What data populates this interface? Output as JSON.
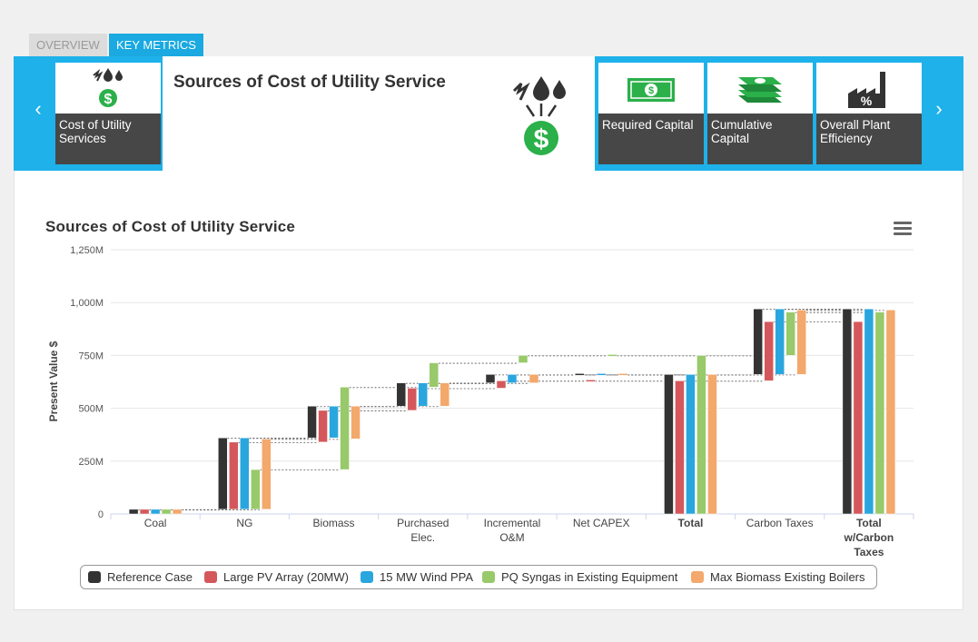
{
  "tabs": {
    "overview": "OVERVIEW",
    "metrics": "KEY METRICS"
  },
  "carousel": {
    "prev": "‹",
    "next": "›",
    "selected_title": "Sources of Cost of Utility Service",
    "cards": [
      {
        "label": "Cost of Utility Services",
        "icon": "energy-cost-icon"
      },
      {
        "label": "Required Capital",
        "icon": "dollar-bill-icon"
      },
      {
        "label": "Cumulative Capital",
        "icon": "money-stack-icon"
      },
      {
        "label": "Overall Plant Efficiency",
        "icon": "factory-percent-icon"
      }
    ]
  },
  "colors": {
    "series": [
      "#333333",
      "#d4585b",
      "#2aa6df",
      "#98c96a",
      "#f3a86c"
    ],
    "accent": "#1eb1ea",
    "icon_green": "#2bb04a"
  },
  "chart_data": {
    "type": "bar",
    "subtype": "waterfall",
    "title": "Sources of Cost of Utility Service",
    "ylabel": "Present Value $",
    "xlabel": "",
    "ylim": [
      0,
      1250
    ],
    "yticks": [
      "0",
      "250M",
      "500M",
      "750M",
      "1,000M",
      "1,250M"
    ],
    "categories": [
      "Coal",
      "NG",
      "Biomass",
      "Purchased\nElec.",
      "Incremental\nO&M",
      "Net CAPEX",
      "Total",
      "Carbon Taxes",
      "Total\nw/Carbon\nTaxes"
    ],
    "total_categories": [
      "Total",
      "Total\nw/Carbon\nTaxes"
    ],
    "units": "million $",
    "series": [
      {
        "name": "Reference Case",
        "ranges": [
          [
            0,
            22
          ],
          [
            22,
            360
          ],
          [
            360,
            510
          ],
          [
            510,
            620
          ],
          [
            620,
            660
          ],
          [
            660,
            660
          ],
          [
            0,
            660
          ],
          [
            660,
            970
          ],
          [
            0,
            970
          ]
        ]
      },
      {
        "name": "Large PV Array (20MW)",
        "ranges": [
          [
            0,
            22
          ],
          [
            22,
            340
          ],
          [
            340,
            490
          ],
          [
            490,
            595
          ],
          [
            595,
            630
          ],
          [
            630,
            630
          ],
          [
            0,
            630
          ],
          [
            630,
            910
          ],
          [
            0,
            910
          ]
        ]
      },
      {
        "name": "15 MW Wind PPA",
        "ranges": [
          [
            0,
            22
          ],
          [
            22,
            360
          ],
          [
            360,
            510
          ],
          [
            510,
            620
          ],
          [
            620,
            660
          ],
          [
            660,
            660
          ],
          [
            0,
            660
          ],
          [
            660,
            970
          ],
          [
            0,
            970
          ]
        ]
      },
      {
        "name": "PQ Syngas in Existing Equipment",
        "ranges": [
          [
            0,
            22
          ],
          [
            22,
            210
          ],
          [
            210,
            600
          ],
          [
            600,
            715
          ],
          [
            715,
            750
          ],
          [
            750,
            750
          ],
          [
            0,
            750
          ],
          [
            750,
            955
          ],
          [
            0,
            955
          ]
        ]
      },
      {
        "name": "Max Biomass Existing Boilers",
        "ranges": [
          [
            0,
            22
          ],
          [
            22,
            355
          ],
          [
            355,
            510
          ],
          [
            510,
            620
          ],
          [
            620,
            660
          ],
          [
            660,
            660
          ],
          [
            0,
            660
          ],
          [
            660,
            965
          ],
          [
            0,
            965
          ]
        ]
      }
    ],
    "legend_position": "bottom"
  }
}
